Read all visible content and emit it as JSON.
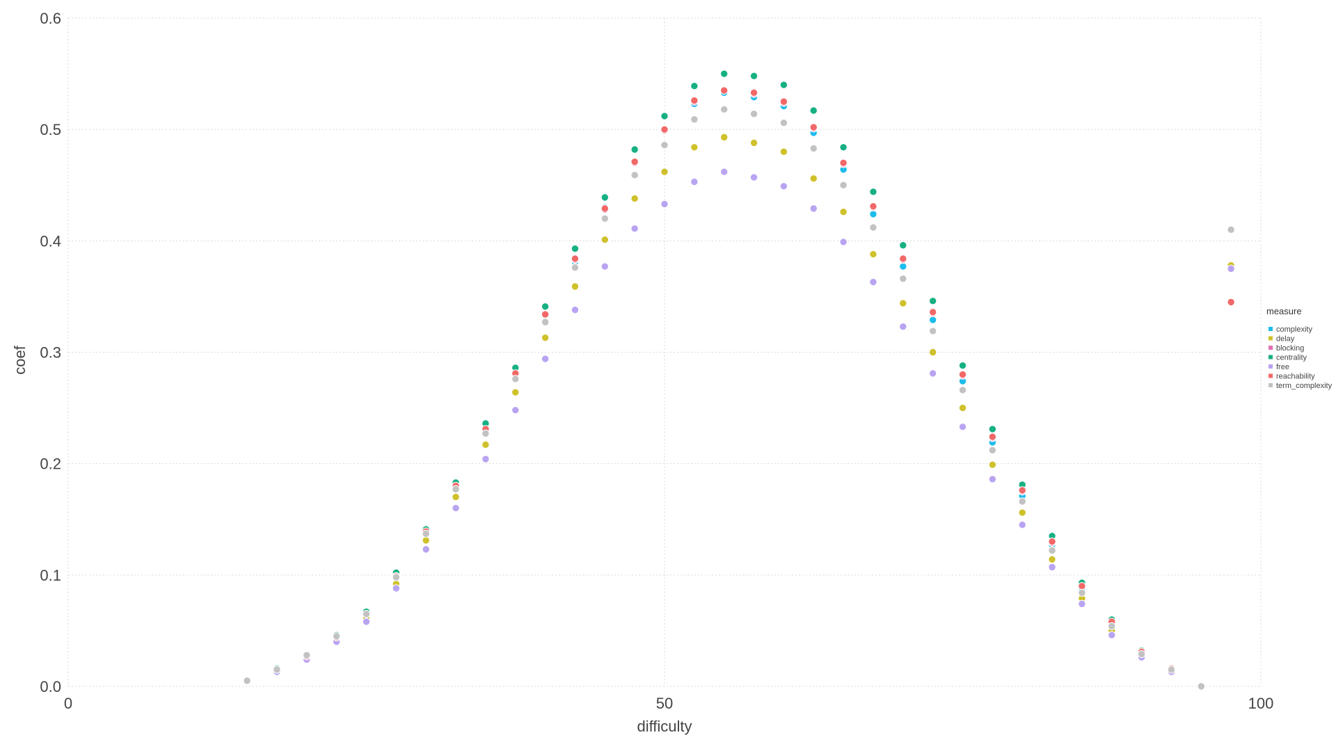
{
  "chart_data": {
    "type": "scatter",
    "title": "",
    "xlabel": "difficulty",
    "ylabel": "coef",
    "xlim": [
      0,
      100
    ],
    "ylim": [
      0,
      0.6
    ],
    "x_ticks": [
      0,
      50,
      100
    ],
    "x_tick_labels": [
      "0",
      "50",
      "100"
    ],
    "y_ticks": [
      0,
      0.1,
      0.2,
      0.3,
      0.4,
      0.5,
      0.6
    ],
    "y_tick_labels": [
      "0.0",
      "0.1",
      "0.2",
      "0.3",
      "0.4",
      "0.5",
      "0.6"
    ],
    "grid": true,
    "legend": {
      "title": "measure",
      "placement": "right"
    },
    "x": [
      15,
      17.5,
      20,
      22.5,
      25,
      27.5,
      30,
      32.5,
      35,
      37.5,
      40,
      42.5,
      45,
      47.5,
      50,
      52.5,
      55,
      57.5,
      60,
      62.5,
      65,
      67.5,
      70,
      72.5,
      75,
      77.5,
      80,
      82.5,
      85,
      87.5,
      90,
      92.5,
      95,
      97.5
    ],
    "series": [
      {
        "name": "complexity",
        "color": "#1CBDEB",
        "values": [
          0.005,
          0.015,
          0.027,
          0.044,
          0.065,
          0.099,
          0.138,
          0.18,
          0.232,
          0.278,
          0.333,
          0.381,
          0.43,
          0.47,
          0.499,
          0.523,
          0.533,
          0.529,
          0.521,
          0.497,
          0.464,
          0.424,
          0.377,
          0.329,
          0.274,
          0.219,
          0.171,
          0.127,
          0.088,
          0.056,
          0.03,
          0.015,
          0.0,
          null
        ]
      },
      {
        "name": "delay",
        "color": "#CFC12B",
        "values": [
          0.005,
          0.014,
          0.026,
          0.042,
          0.061,
          0.092,
          0.131,
          0.17,
          0.217,
          0.264,
          0.313,
          0.359,
          0.401,
          0.438,
          0.462,
          0.484,
          0.493,
          0.488,
          0.48,
          0.456,
          0.426,
          0.388,
          0.344,
          0.3,
          0.25,
          0.199,
          0.156,
          0.114,
          0.079,
          0.05,
          0.028,
          0.014,
          0.0,
          0.378
        ]
      },
      {
        "name": "blocking",
        "color": "#E46FB4",
        "values": [
          0.005,
          0.015,
          0.027,
          0.044,
          0.065,
          0.1,
          0.139,
          0.18,
          0.232,
          0.28,
          0.334,
          0.383,
          0.428,
          0.47,
          0.499,
          0.525,
          0.535,
          0.532,
          0.524,
          0.501,
          0.469,
          0.43,
          0.383,
          0.335,
          0.279,
          0.223,
          0.175,
          0.129,
          0.09,
          0.058,
          0.031,
          0.016,
          0.0,
          null
        ]
      },
      {
        "name": "centrality",
        "color": "#16B083",
        "values": [
          0.005,
          0.016,
          0.028,
          0.046,
          0.067,
          0.102,
          0.141,
          0.183,
          0.236,
          0.286,
          0.341,
          0.393,
          0.439,
          0.482,
          0.512,
          0.539,
          0.55,
          0.548,
          0.54,
          0.517,
          0.484,
          0.444,
          0.396,
          0.346,
          0.288,
          0.231,
          0.181,
          0.135,
          0.093,
          0.06,
          0.032,
          0.016,
          0.0,
          null
        ]
      },
      {
        "name": "free",
        "color": "#B9A4F2",
        "values": [
          0.005,
          0.013,
          0.024,
          0.04,
          0.058,
          0.088,
          0.123,
          0.16,
          0.204,
          0.248,
          0.294,
          0.338,
          0.377,
          0.411,
          0.433,
          0.453,
          0.462,
          0.457,
          0.449,
          0.429,
          0.399,
          0.363,
          0.323,
          0.281,
          0.233,
          0.186,
          0.145,
          0.107,
          0.074,
          0.046,
          0.026,
          0.013,
          0.0,
          0.375
        ]
      },
      {
        "name": "reachability",
        "color": "#F26868",
        "values": [
          0.005,
          0.015,
          0.027,
          0.044,
          0.065,
          0.099,
          0.139,
          0.18,
          0.231,
          0.281,
          0.334,
          0.384,
          0.429,
          0.471,
          0.5,
          0.526,
          0.535,
          0.533,
          0.525,
          0.502,
          0.47,
          0.431,
          0.384,
          0.336,
          0.28,
          0.224,
          0.176,
          0.13,
          0.09,
          0.058,
          0.031,
          0.016,
          0.0,
          0.345
        ]
      },
      {
        "name": "term_complexity",
        "color": "#C2C2C2",
        "values": [
          0.005,
          0.015,
          0.028,
          0.045,
          0.065,
          0.098,
          0.137,
          0.177,
          0.227,
          0.276,
          0.327,
          0.376,
          0.42,
          0.459,
          0.486,
          0.509,
          0.518,
          0.514,
          0.506,
          0.483,
          0.45,
          0.412,
          0.366,
          0.319,
          0.266,
          0.212,
          0.166,
          0.122,
          0.084,
          0.054,
          0.029,
          0.015,
          0.0,
          0.41
        ]
      }
    ]
  }
}
